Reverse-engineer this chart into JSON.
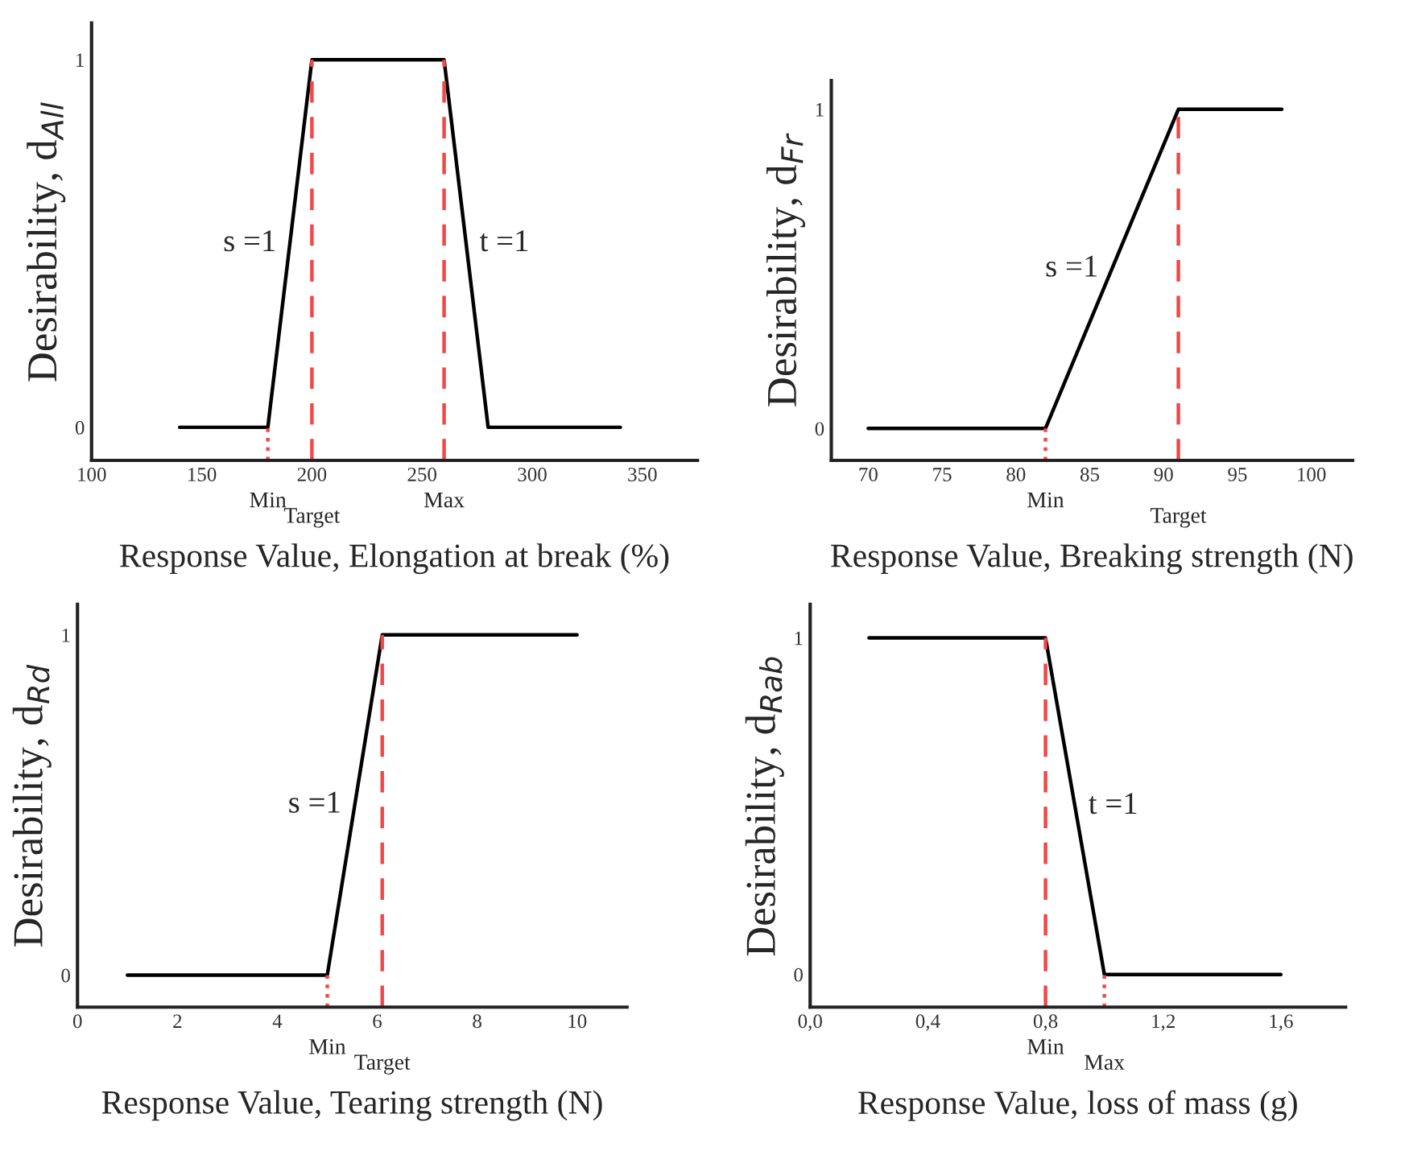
{
  "chart_data": [
    {
      "type": "line",
      "xlabel": "Response Value, Elongation at break (%)",
      "ylabel": "Desirability, d$_{All}$",
      "xlim": [
        100,
        375
      ],
      "ylim": [
        -0.09,
        1.1
      ],
      "xticks": [
        100,
        150,
        200,
        250,
        300,
        350
      ],
      "yticks": [
        0,
        1
      ],
      "series": [
        {
          "color": "#000000",
          "x": [
            140,
            180,
            200,
            260,
            280,
            340
          ],
          "values": [
            0,
            0,
            1,
            1,
            0,
            0
          ]
        }
      ],
      "ref_lines": [
        {
          "axis": "x",
          "value": 180,
          "label": "Min",
          "color": "#f04848",
          "line_style": "dotted"
        },
        {
          "axis": "x",
          "value": 200,
          "label": "Target",
          "color": "#f04848",
          "line_style": "dashed"
        },
        {
          "axis": "x",
          "value": 260,
          "label": "Max",
          "color": "#f04848",
          "line_style": "dashed"
        }
      ],
      "annotations": [
        {
          "text": "s =1",
          "x": 190,
          "y": 0.5
        },
        {
          "text": "t =1",
          "x": 270,
          "y": 0.5
        }
      ],
      "grid": false,
      "marker": "none",
      "line_style": "solid"
    },
    {
      "type": "line",
      "xlabel": "Response Value, Breaking strength (N)",
      "ylabel": "Desirability, d$_{Fr}$",
      "xlim": [
        67.5,
        102.8
      ],
      "ylim": [
        -0.1,
        1.09
      ],
      "xticks": [
        70,
        75,
        80,
        85,
        90,
        95,
        100
      ],
      "yticks": [
        0,
        1
      ],
      "series": [
        {
          "color": "#000000",
          "x": [
            70,
            82,
            91,
            98
          ],
          "values": [
            0,
            0,
            1,
            1
          ]
        }
      ],
      "ref_lines": [
        {
          "axis": "x",
          "value": 82,
          "label": "Min",
          "color": "#f04848",
          "line_style": "dotted"
        },
        {
          "axis": "x",
          "value": 91,
          "label": "Target",
          "color": "#f04848",
          "line_style": "dashed"
        }
      ],
      "annotations": [
        {
          "text": "s =1",
          "x": 86.5,
          "y": 0.5
        }
      ],
      "grid": false,
      "marker": "none",
      "line_style": "solid"
    },
    {
      "type": "line",
      "xlabel": "Response Value, Tearing strength (N)",
      "ylabel": "Desirability, d$_{Rd}$",
      "xlim": [
        0,
        11
      ],
      "ylim": [
        -0.094,
        1.09
      ],
      "xticks": [
        0,
        2,
        4,
        6,
        8,
        10
      ],
      "yticks": [
        0,
        1
      ],
      "series": [
        {
          "color": "#000000",
          "x": [
            1,
            5,
            6.1,
            10
          ],
          "values": [
            0,
            0,
            1,
            1
          ]
        }
      ],
      "ref_lines": [
        {
          "axis": "x",
          "value": 5,
          "label": "Min",
          "color": "#f04848",
          "line_style": "dotted"
        },
        {
          "axis": "x",
          "value": 6.1,
          "label": "Target",
          "color": "#f04848",
          "line_style": "dashed"
        }
      ],
      "annotations": [
        {
          "text": "s =1",
          "x": 5.55,
          "y": 0.5
        }
      ],
      "grid": false,
      "marker": "none",
      "line_style": "solid"
    },
    {
      "type": "line",
      "xlabel": "Response Value, loss of mass (g)",
      "ylabel": "Desirability, d$_{Rab}$",
      "xlim": [
        0,
        1.82
      ],
      "ylim": [
        -0.097,
        1.1
      ],
      "xticks": [
        {
          "value": 0,
          "label": "0,0"
        },
        {
          "value": 0.4,
          "label": "0,4"
        },
        {
          "value": 0.8,
          "label": "0,8"
        },
        {
          "value": 1.2,
          "label": "1,2"
        },
        {
          "value": 1.6,
          "label": "1,6"
        }
      ],
      "yticks": [
        0,
        1
      ],
      "series": [
        {
          "color": "#000000",
          "x": [
            0.2,
            0.8,
            1.0,
            1.6
          ],
          "values": [
            1,
            1,
            0,
            0
          ]
        }
      ],
      "ref_lines": [
        {
          "axis": "x",
          "value": 0.8,
          "label": "Min",
          "color": "#f04848",
          "line_style": "dashed"
        },
        {
          "axis": "x",
          "value": 1.0,
          "label": "Max",
          "color": "#f04848",
          "line_style": "dotted"
        }
      ],
      "annotations": [
        {
          "text": "t =1",
          "x": 0.9,
          "y": 0.5
        }
      ],
      "grid": false,
      "marker": "none",
      "line_style": "solid"
    }
  ]
}
